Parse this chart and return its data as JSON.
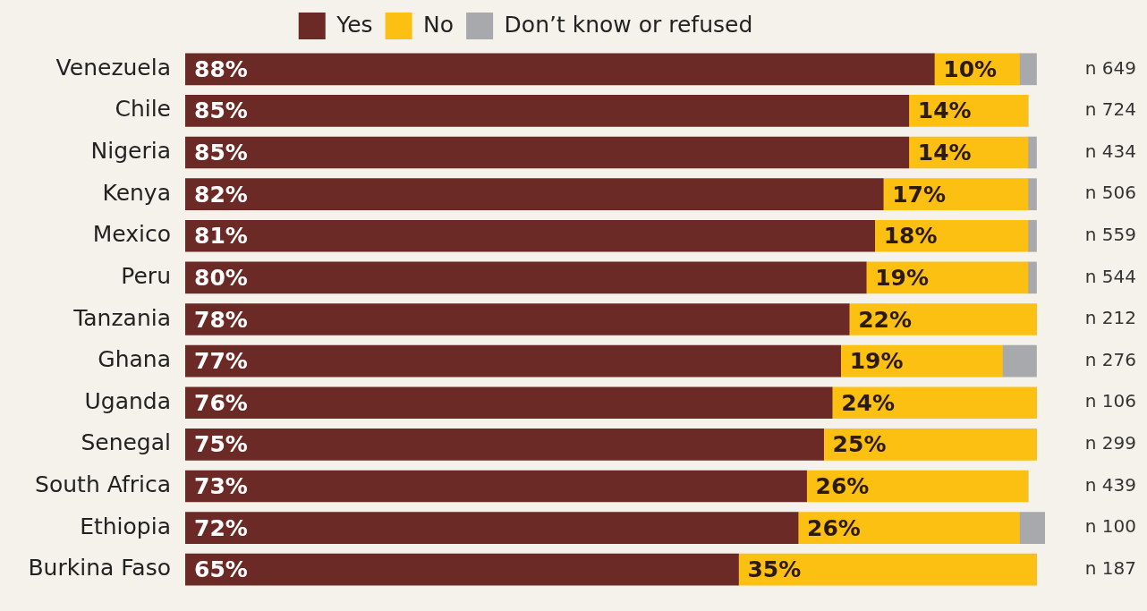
{
  "chart_data": {
    "type": "bar",
    "orientation": "horizontal",
    "stacked": true,
    "legend": "top",
    "categories": [
      "Venezuela",
      "Chile",
      "Nigeria",
      "Kenya",
      "Mexico",
      "Peru",
      "Tanzania",
      "Ghana",
      "Uganda",
      "Senegal",
      "South Africa",
      "Ethiopia",
      "Burkina Faso"
    ],
    "series": [
      {
        "name": "Yes",
        "color": "#6b2a26",
        "values": [
          88,
          85,
          85,
          82,
          81,
          80,
          78,
          77,
          76,
          75,
          73,
          72,
          65
        ],
        "value_labels": [
          "88%",
          "85%",
          "85%",
          "82%",
          "81%",
          "80%",
          "78%",
          "77%",
          "76%",
          "75%",
          "73%",
          "72%",
          "65%"
        ]
      },
      {
        "name": "No",
        "color": "#fcc012",
        "values": [
          10,
          14,
          14,
          17,
          18,
          19,
          22,
          19,
          24,
          25,
          26,
          26,
          35
        ],
        "value_labels": [
          "10%",
          "14%",
          "14%",
          "17%",
          "18%",
          "19%",
          "22%",
          "19%",
          "24%",
          "25%",
          "26%",
          "26%",
          "35%"
        ]
      },
      {
        "name": "Don’t know or refused",
        "color": "#a8a9ad",
        "values": [
          2,
          0,
          1,
          1,
          1,
          1,
          0,
          4,
          0,
          0,
          0,
          3,
          0
        ]
      }
    ],
    "annotations": [
      "n 649",
      "n 724",
      "n 434",
      "n 506",
      "n 559",
      "n 544",
      "n 212",
      "n 276",
      "n 106",
      "n 299",
      "n 439",
      "n 100",
      "n 187"
    ]
  }
}
